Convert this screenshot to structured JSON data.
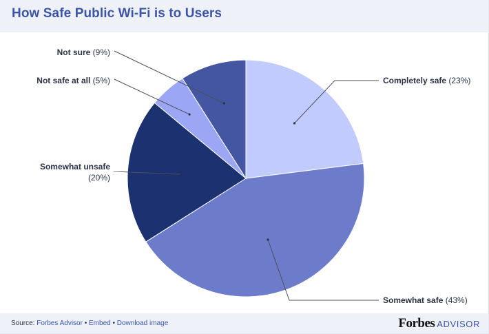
{
  "header": {
    "title": "How Safe Public Wi-Fi is to Users"
  },
  "chart_data": {
    "type": "pie",
    "title": "How Safe Public Wi-Fi is to Users",
    "start_angle_deg": 0,
    "direction": "clockwise",
    "slices": [
      {
        "label": "Completely safe",
        "value": 23,
        "pct_text": "(23%)",
        "color": "#c2cbfe"
      },
      {
        "label": "Somewhat safe",
        "value": 43,
        "pct_text": "(43%)",
        "color": "#6d7bcb"
      },
      {
        "label": "Somewhat unsafe",
        "value": 20,
        "pct_text": "(20%)",
        "color": "#1c3170"
      },
      {
        "label": "Not safe at all",
        "value": 5,
        "pct_text": "(5%)",
        "color": "#9ba7f4"
      },
      {
        "label": "Not sure",
        "value": 9,
        "pct_text": "(9%)",
        "color": "#4455a1"
      }
    ],
    "legend": "none"
  },
  "footer": {
    "source_prefix": "Source: ",
    "source_link": "Forbes Advisor",
    "separator": " • ",
    "embed_link": "Embed",
    "download_link": "Download image",
    "brand_name": "Forbes",
    "brand_suffix": "ADVISOR"
  }
}
